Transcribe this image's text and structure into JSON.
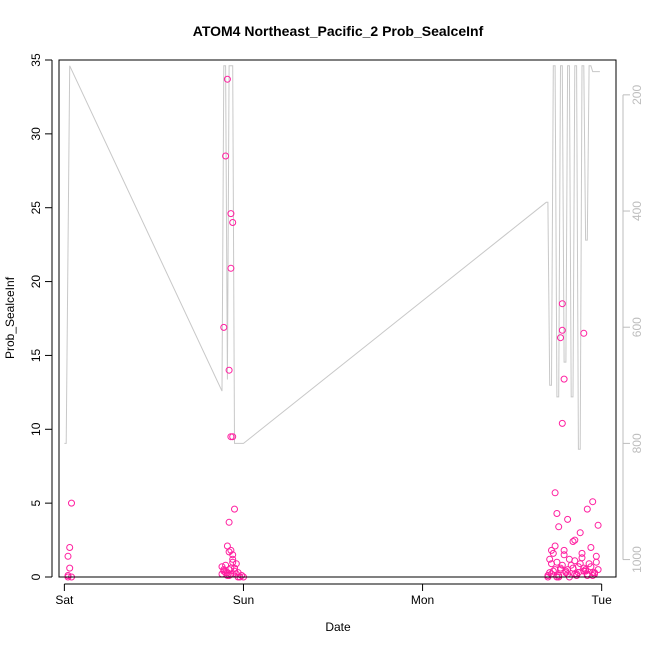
{
  "chart_data": {
    "type": "scatter",
    "title": "ATOM4 Northeast_Pacific_2 Prob_SealceInf",
    "xlabel": "Date",
    "ylabel": "Prob_SealceInf",
    "x_unit": "days",
    "xlim": [
      -0.03,
      3.08
    ],
    "ylim": [
      0,
      35
    ],
    "x_ticks": [
      {
        "value": 0,
        "label": "Sat"
      },
      {
        "value": 1,
        "label": "Sun"
      },
      {
        "value": 2,
        "label": "Mon"
      },
      {
        "value": 3,
        "label": "Tue"
      }
    ],
    "y_ticks": [
      0,
      5,
      10,
      15,
      20,
      25,
      30,
      35
    ],
    "secondary_axis": {
      "side": "right",
      "reversed": true,
      "range": [
        1030,
        140
      ],
      "ticks": [
        200,
        400,
        600,
        800,
        1000
      ],
      "color": "#bdbdbd"
    },
    "point_color": "#ff1fa0",
    "line_color": "#c8c8c8",
    "series": [
      {
        "type": "scatter",
        "x": [
          0.02,
          0.03,
          0.02,
          0.03,
          0.04,
          0.02,
          0.04,
          0.9,
          0.89,
          0.91,
          0.93,
          0.94,
          0.93,
          0.92,
          0.93,
          0.94,
          0.95,
          0.92,
          0.91,
          0.93,
          0.88,
          0.89,
          0.9,
          0.91,
          0.92,
          0.93,
          0.94,
          0.95,
          0.96,
          0.97,
          0.88,
          0.9,
          0.92,
          0.94,
          0.96,
          0.98,
          1.0,
          0.99,
          0.97,
          0.95,
          0.93,
          0.91,
          0.89,
          0.92,
          0.94,
          2.78,
          2.78,
          2.77,
          2.79,
          2.78,
          2.9,
          2.74,
          2.75,
          2.76,
          2.81,
          2.88,
          2.92,
          2.95,
          2.72,
          2.73,
          2.85,
          2.98,
          2.7,
          2.72,
          2.74,
          2.76,
          2.78,
          2.8,
          2.82,
          2.84,
          2.86,
          2.88,
          2.9,
          2.92,
          2.94,
          2.96,
          2.98,
          2.71,
          2.73,
          2.75,
          2.77,
          2.79,
          2.81,
          2.83,
          2.85,
          2.87,
          2.89,
          2.91,
          2.93,
          2.95,
          2.97,
          2.7,
          2.75,
          2.8,
          2.85,
          2.9,
          2.95,
          2.72,
          2.77,
          2.82,
          2.87,
          2.92,
          2.97,
          2.74,
          2.79,
          2.84,
          2.89,
          2.94,
          2.71,
          2.76,
          2.81,
          2.86,
          2.91,
          2.96
        ],
        "y": [
          0,
          0.6,
          1.4,
          2.0,
          5.0,
          0.1,
          0,
          28.5,
          16.9,
          33.7,
          24.6,
          24.0,
          20.9,
          14.0,
          9.5,
          9.5,
          4.6,
          3.7,
          2.1,
          1.8,
          0.2,
          0.5,
          0.8,
          0.3,
          0.1,
          0.6,
          1.0,
          0.4,
          0.2,
          0,
          0.7,
          0.3,
          0.5,
          1.2,
          0.9,
          0,
          0,
          0.1,
          0.3,
          0.6,
          0.2,
          0.1,
          0.4,
          1.7,
          1.5,
          18.5,
          16.7,
          16.2,
          13.4,
          10.4,
          16.5,
          5.7,
          4.3,
          3.4,
          3.9,
          3.0,
          4.6,
          5.1,
          1.8,
          1.6,
          2.5,
          3.5,
          0,
          0.2,
          0.5,
          0.1,
          0.8,
          0.3,
          0,
          0.6,
          0.2,
          0.9,
          0.4,
          0.1,
          0.7,
          0.3,
          0.5,
          1.2,
          0.4,
          1.0,
          0.6,
          1.5,
          0.2,
          0.8,
          1.1,
          0.3,
          1.3,
          0.5,
          0.9,
          0.1,
          1.4,
          0.1,
          0,
          0.4,
          0.2,
          0.6,
          0.3,
          0.9,
          0.5,
          1.2,
          0.7,
          0.2,
          1.0,
          2.1,
          1.8,
          2.4,
          1.6,
          2.0,
          0.3,
          0,
          0.5,
          0.1,
          0.4,
          0.2
        ]
      },
      {
        "type": "line",
        "axis": "secondary",
        "x": [
          0.0,
          0.01,
          0.03,
          0.88,
          0.89,
          0.9,
          0.91,
          0.92,
          0.93,
          0.94,
          0.95,
          0.96,
          0.97,
          0.98,
          0.99,
          1.0,
          2.69,
          2.7,
          2.71,
          2.72,
          2.73,
          2.74,
          2.75,
          2.76,
          2.77,
          2.78,
          2.79,
          2.8,
          2.81,
          2.82,
          2.83,
          2.84,
          2.85,
          2.86,
          2.87,
          2.88,
          2.89,
          2.9,
          2.91,
          2.92,
          2.93,
          2.94,
          2.95,
          2.96,
          2.97,
          2.98,
          2.99
        ],
        "y": [
          800,
          800,
          150,
          710,
          150,
          150,
          690,
          150,
          150,
          150,
          800,
          800,
          800,
          800,
          800,
          800,
          385,
          385,
          700,
          700,
          150,
          150,
          720,
          720,
          150,
          150,
          660,
          660,
          150,
          150,
          720,
          720,
          150,
          150,
          810,
          810,
          150,
          150,
          450,
          450,
          150,
          150,
          160,
          160,
          160,
          160,
          160
        ]
      }
    ]
  }
}
